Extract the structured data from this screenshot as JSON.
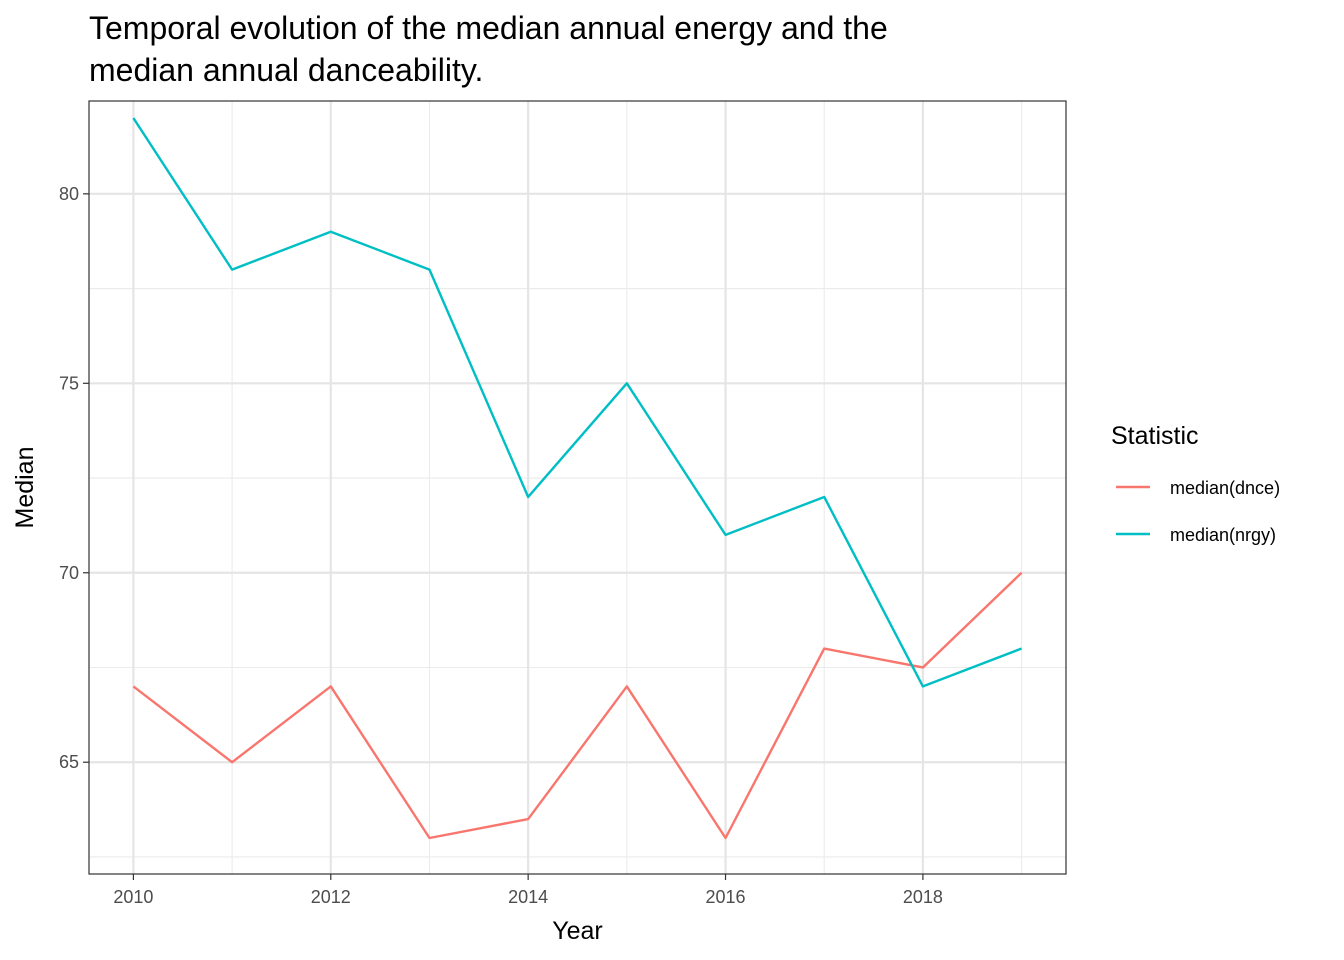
{
  "chart_data": {
    "type": "line",
    "title_lines": [
      "Temporal evolution of the median annual energy and the",
      "median annual danceability."
    ],
    "xlabel": "Year",
    "ylabel": "Median",
    "x": [
      2010,
      2011,
      2012,
      2013,
      2014,
      2015,
      2016,
      2017,
      2018,
      2019
    ],
    "x_ticks": [
      2010,
      2012,
      2014,
      2016,
      2018
    ],
    "x_tick_labels": [
      "2010",
      "2012",
      "2014",
      "2016",
      "2018"
    ],
    "y_ticks": [
      65,
      70,
      75,
      80
    ],
    "y_tick_labels": [
      "65",
      "70",
      "75",
      "80"
    ],
    "xlim": [
      2009.55,
      2019.45
    ],
    "ylim": [
      62.05,
      82.45
    ],
    "grid": true,
    "legend": {
      "title": "Statistic",
      "placement": "right"
    },
    "series": [
      {
        "name": "median(dnce)",
        "color": "#f8766d",
        "values": [
          67,
          65,
          67,
          63,
          63.5,
          67,
          63,
          68,
          67.5,
          70
        ]
      },
      {
        "name": "median(nrgy)",
        "color": "#00bfc4",
        "values": [
          82,
          78,
          79,
          78,
          72,
          75,
          71,
          72,
          67,
          68
        ]
      }
    ]
  }
}
